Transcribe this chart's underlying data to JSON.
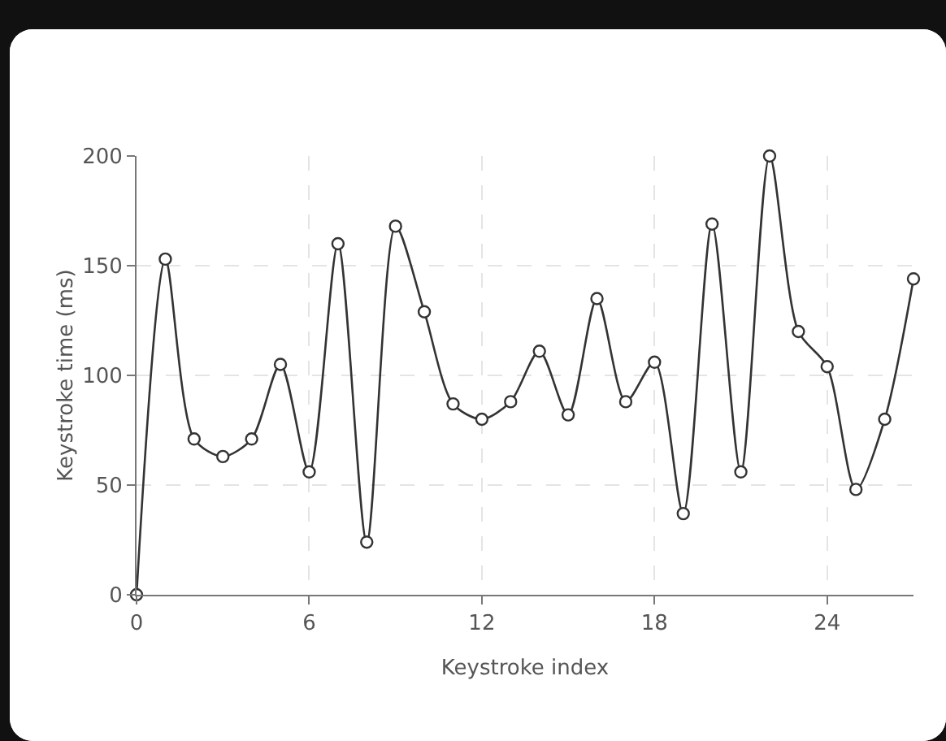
{
  "chart_data": {
    "type": "line",
    "xlabel": "Keystroke index",
    "ylabel": "Keystroke time (ms)",
    "x": [
      0,
      1,
      2,
      3,
      4,
      5,
      6,
      7,
      8,
      9,
      10,
      11,
      12,
      13,
      14,
      15,
      16,
      17,
      18,
      19,
      20,
      21,
      22,
      23,
      24,
      25,
      26,
      27
    ],
    "series": [
      {
        "color": "#333333",
        "values": [
          0,
          153,
          71,
          63,
          71,
          105,
          56,
          160,
          24,
          168,
          129,
          87,
          80,
          88,
          111,
          82,
          135,
          88,
          106,
          37,
          169,
          56,
          200,
          120,
          104,
          48,
          80,
          144
        ]
      }
    ],
    "xlim": [
      0,
      27
    ],
    "xticks": [
      0,
      6,
      12,
      18,
      24
    ],
    "ylim": [
      0,
      200
    ],
    "yticks": [
      0,
      50,
      100,
      150,
      200
    ],
    "grid": true,
    "marker": "circle",
    "line_style": "solid"
  }
}
